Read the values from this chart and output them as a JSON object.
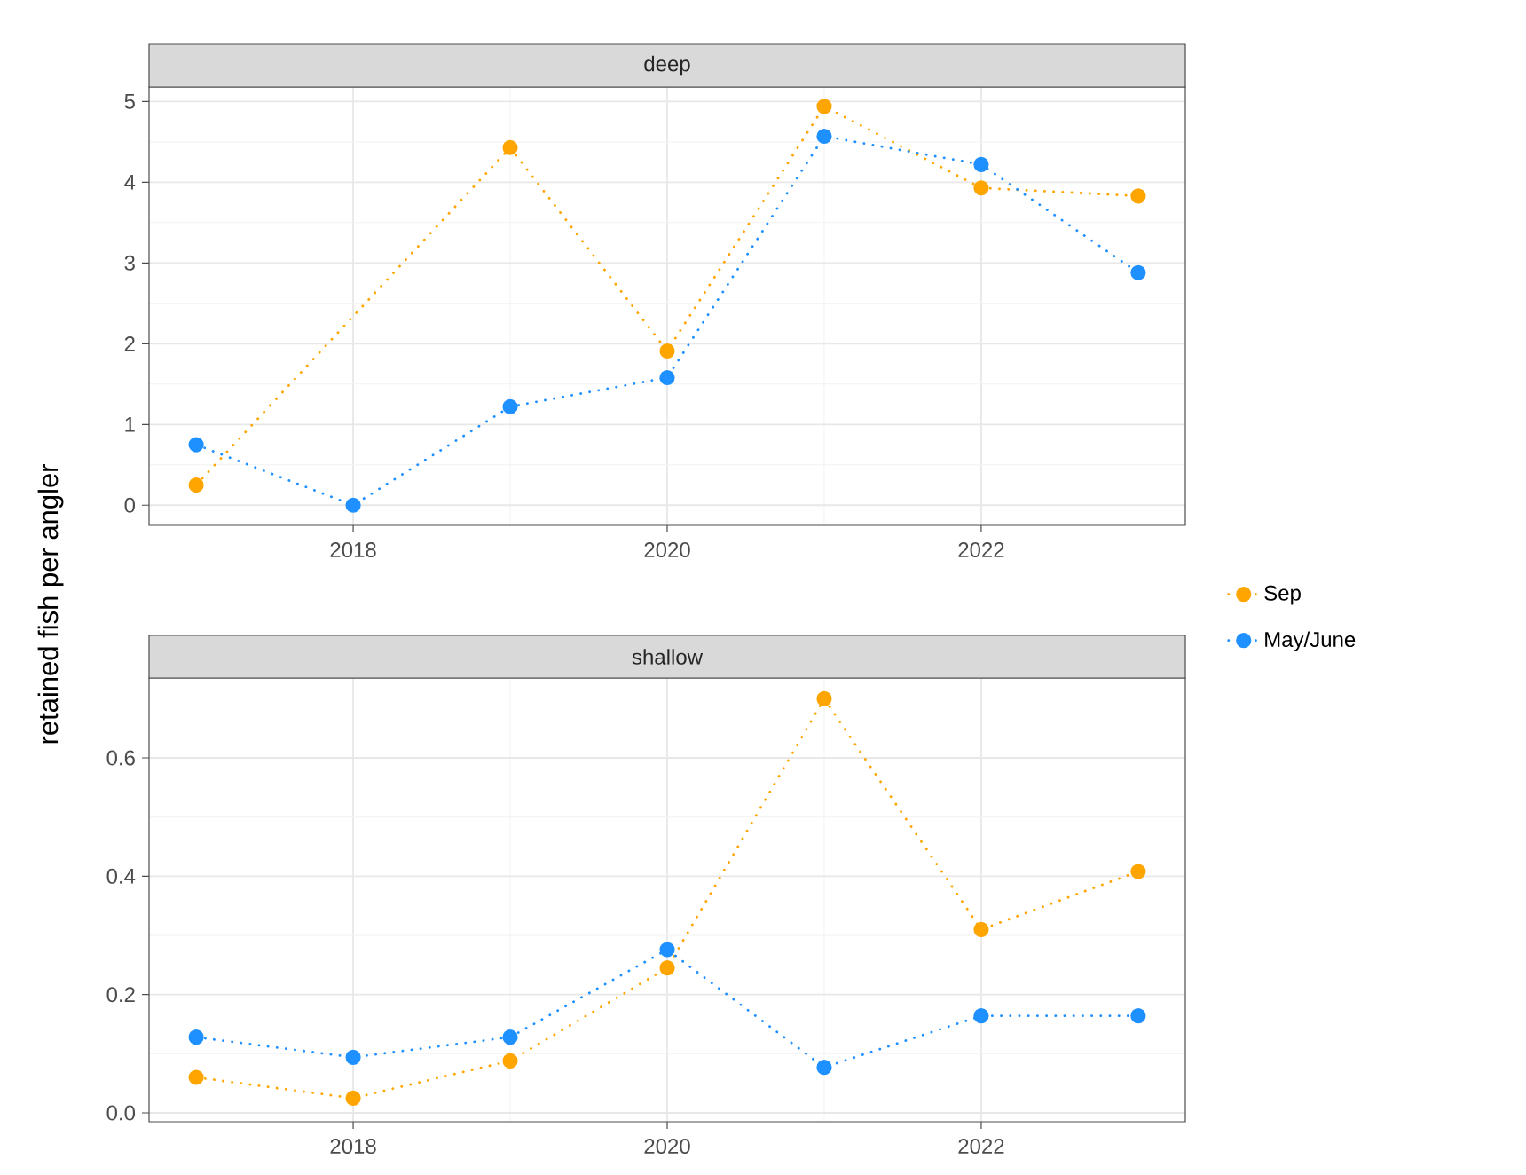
{
  "chart_data": [
    {
      "type": "line",
      "title": "deep",
      "ylabel": "retained fish per angler",
      "xlim": [
        2016.7,
        2023.3
      ],
      "xticks": [
        2018,
        2020,
        2022
      ],
      "ylim": [
        -0.25,
        5.18
      ],
      "yticks": [
        0,
        1,
        2,
        3,
        4,
        5
      ],
      "grid": true,
      "legend": "right",
      "marker": "circle",
      "line_style": "dotted",
      "series": [
        {
          "name": "Sep",
          "color": "#ffa500",
          "x": [
            2017,
            2019,
            2020,
            2021,
            2022,
            2023
          ],
          "values": [
            0.25,
            4.43,
            1.91,
            4.94,
            3.93,
            3.83
          ]
        },
        {
          "name": "May/June",
          "color": "#1e90ff",
          "x": [
            2017,
            2018,
            2019,
            2020,
            2021,
            2022,
            2023
          ],
          "values": [
            0.75,
            0.0,
            1.22,
            1.58,
            4.57,
            4.22,
            2.88
          ]
        }
      ]
    },
    {
      "type": "line",
      "title": "shallow",
      "xlim": [
        2016.7,
        2023.3
      ],
      "xticks": [
        2018,
        2020,
        2022
      ],
      "ylim": [
        -0.015,
        0.735
      ],
      "yticks": [
        {
          "value": 0,
          "label": "0.0"
        },
        {
          "value": 0.2,
          "label": "0.2"
        },
        {
          "value": 0.4,
          "label": "0.4"
        },
        {
          "value": 0.6,
          "label": "0.6"
        }
      ],
      "grid": true,
      "marker": "circle",
      "line_style": "dotted",
      "series": [
        {
          "color": "#ffa500",
          "x": [
            2017,
            2018,
            2019,
            2020,
            2021,
            2022,
            2023
          ],
          "values": [
            0.06,
            0.025,
            0.088,
            0.245,
            0.7,
            0.31,
            0.408
          ]
        },
        {
          "color": "#1e90ff",
          "x": [
            2017,
            2018,
            2019,
            2020,
            2021,
            2022,
            2023
          ],
          "values": [
            0.128,
            0.094,
            0.128,
            0.276,
            0.077,
            0.164,
            0.164
          ]
        }
      ]
    }
  ]
}
